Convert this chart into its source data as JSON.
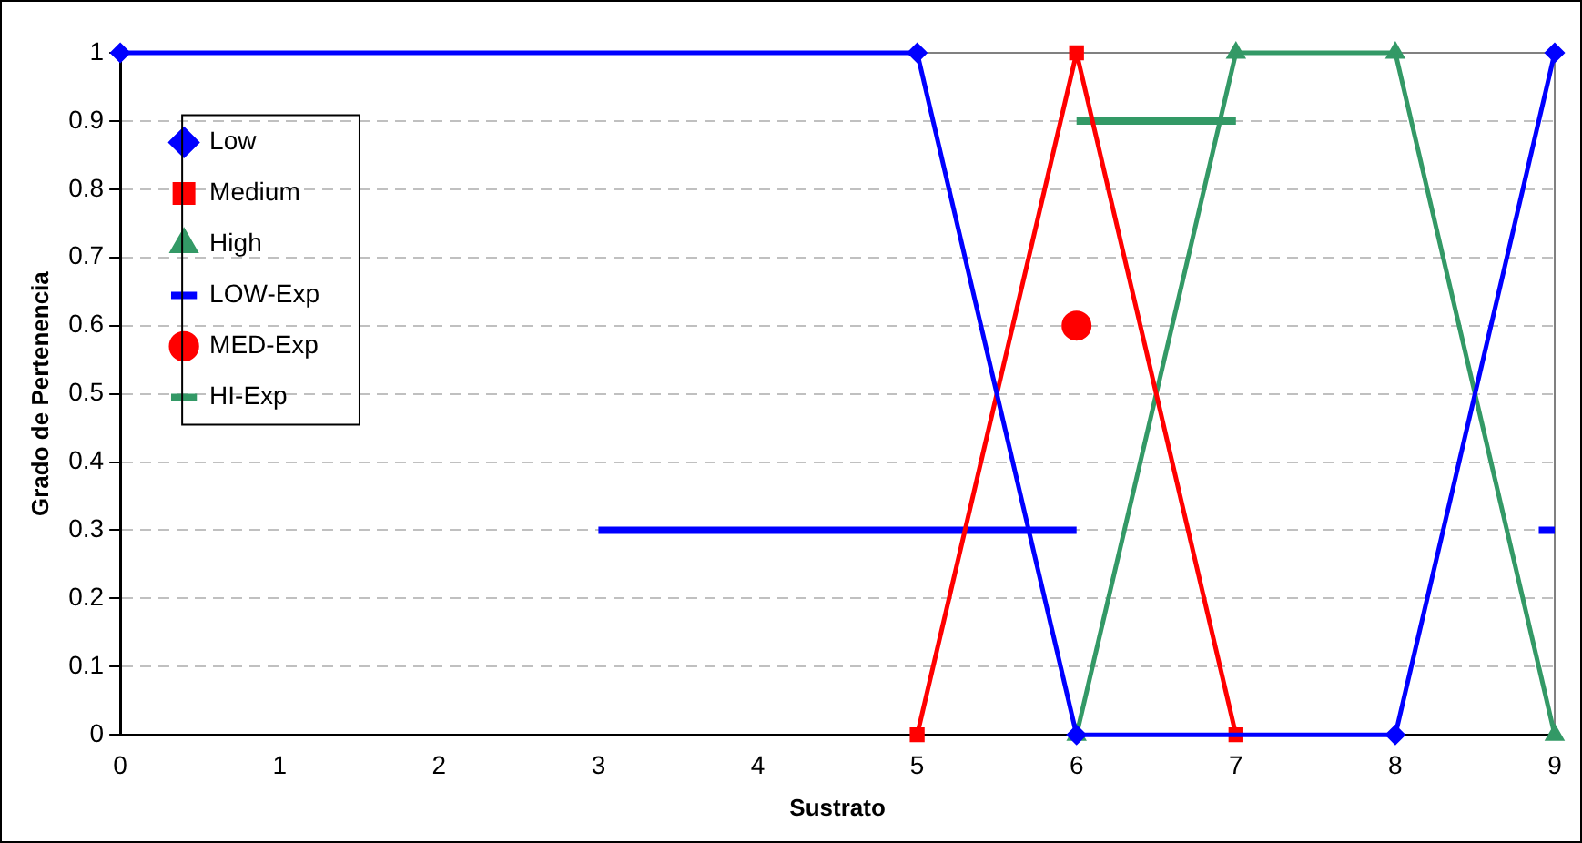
{
  "chart_data": {
    "type": "line",
    "xlabel": "Sustrato",
    "ylabel": "Grado de Pertenencia",
    "xlim": [
      0,
      9
    ],
    "xticks": [
      0,
      1,
      2,
      3,
      4,
      5,
      6,
      7,
      8,
      9
    ],
    "ylim": [
      0,
      1
    ],
    "yticks": [
      0,
      0.1,
      0.2,
      0.3,
      0.4,
      0.5,
      0.6,
      0.7,
      0.8,
      0.9,
      1
    ],
    "grid": "y",
    "legend": "top left",
    "series": [
      {
        "name": "Low",
        "color": "#0000ff",
        "marker": "diamond",
        "x": [
          0,
          5,
          6,
          8,
          9
        ],
        "values": [
          1,
          1,
          0,
          0,
          1
        ]
      },
      {
        "name": "Medium",
        "color": "#ff0000",
        "marker": "square",
        "x": [
          5,
          6,
          7
        ],
        "values": [
          0,
          1,
          0
        ]
      },
      {
        "name": "High",
        "color": "#339966",
        "marker": "triangle",
        "x": [
          6,
          7,
          8,
          9
        ],
        "values": [
          0,
          1,
          1,
          0
        ]
      },
      {
        "name": "LOW-Exp",
        "color": "#0000ff",
        "marker": "none",
        "x": [
          3,
          6,
          null,
          8.9,
          9
        ],
        "values": [
          0.3,
          0.3,
          null,
          0.3,
          0.3
        ]
      },
      {
        "name": "MED-Exp",
        "type": "scatter",
        "color": "#ff0000",
        "marker": "circle",
        "x": [
          6
        ],
        "values": [
          0.6
        ]
      },
      {
        "name": "HI-Exp",
        "color": "#339966",
        "marker": "none",
        "x": [
          6,
          7
        ],
        "values": [
          0.9,
          0.9
        ]
      }
    ]
  }
}
